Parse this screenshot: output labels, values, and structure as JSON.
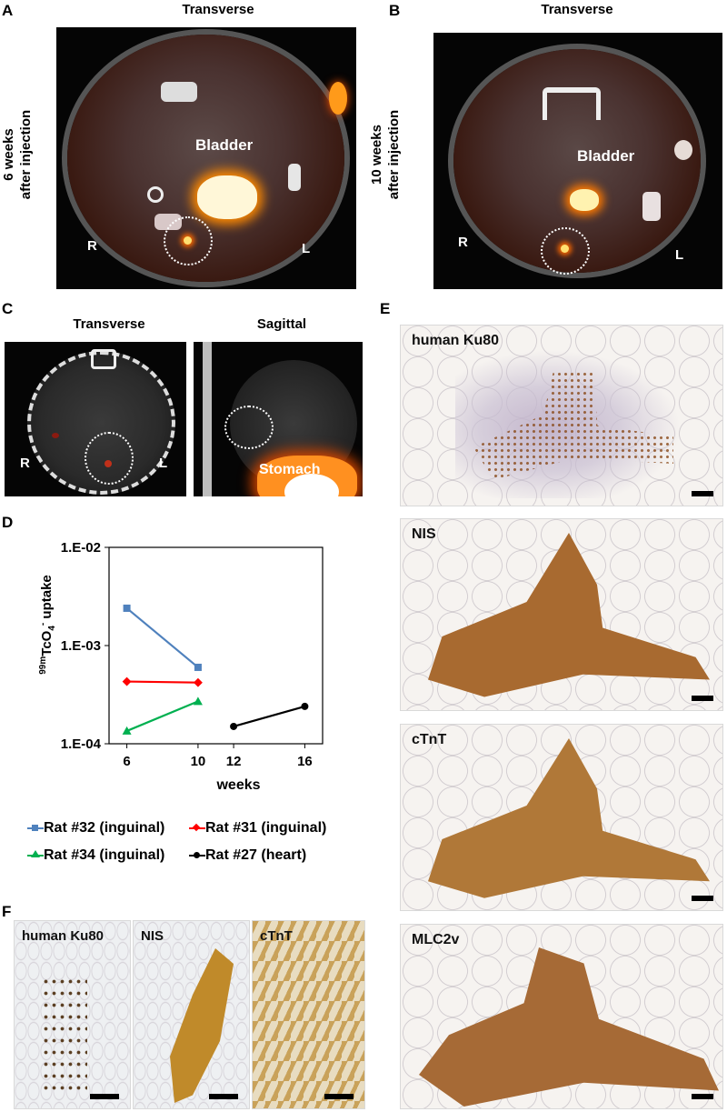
{
  "panels": {
    "A": {
      "letter": "A",
      "view": "Transverse",
      "side_label": "6 weeks\nafter injection",
      "organ": "Bladder",
      "right": "R",
      "left": "L"
    },
    "B": {
      "letter": "B",
      "view": "Transverse",
      "side_label": "10 weeks\nafter injection",
      "organ": "Bladder",
      "right": "R",
      "left": "L"
    },
    "C": {
      "letter": "C",
      "view1": "Transverse",
      "view2": "Sagittal",
      "right": "R",
      "left": "L",
      "organ": "Stomach"
    },
    "D": {
      "letter": "D"
    },
    "E": {
      "letter": "E",
      "stains": [
        "human Ku80",
        "NIS",
        "cTnT",
        "MLC2v"
      ]
    },
    "F": {
      "letter": "F",
      "stains": [
        "human Ku80",
        "NIS",
        "cTnT"
      ]
    }
  },
  "colors": {
    "rat32": "#4f81bd",
    "rat31": "#ff0000",
    "rat34": "#00b050",
    "rat27": "#000000"
  },
  "chart_data": {
    "type": "line",
    "ylabel_iso": "99m",
    "ylabel_main": "TcO",
    "ylabel_sub": "4",
    "ylabel_sup": "-",
    "ylabel_tail": " uptake",
    "xlabel": "weeks",
    "y_scale": "log",
    "ylim": [
      0.0001,
      0.01
    ],
    "yticks": [
      "1.E-02",
      "1.E-03",
      "1.E-04"
    ],
    "xticks": [
      "6",
      "10",
      "12",
      "16"
    ],
    "x_tick_values": [
      6,
      10,
      12,
      16
    ],
    "grid": false,
    "legend_position": "bottom",
    "series": [
      {
        "name": "Rat #32 (inguinal)",
        "marker": "square",
        "color": "#4f81bd",
        "x": [
          6,
          10
        ],
        "y": [
          0.0024,
          0.0006
        ]
      },
      {
        "name": "Rat #31 (inguinal)",
        "marker": "diamond",
        "color": "#ff0000",
        "x": [
          6,
          10
        ],
        "y": [
          0.00043,
          0.00042
        ]
      },
      {
        "name": "Rat #34 (inguinal)",
        "marker": "triangle",
        "color": "#00b050",
        "x": [
          6,
          10
        ],
        "y": [
          0.000135,
          0.00027
        ]
      },
      {
        "name": "Rat #27 (heart)",
        "marker": "circle",
        "color": "#000000",
        "x": [
          12,
          16
        ],
        "y": [
          0.00015,
          0.00024
        ]
      }
    ]
  }
}
